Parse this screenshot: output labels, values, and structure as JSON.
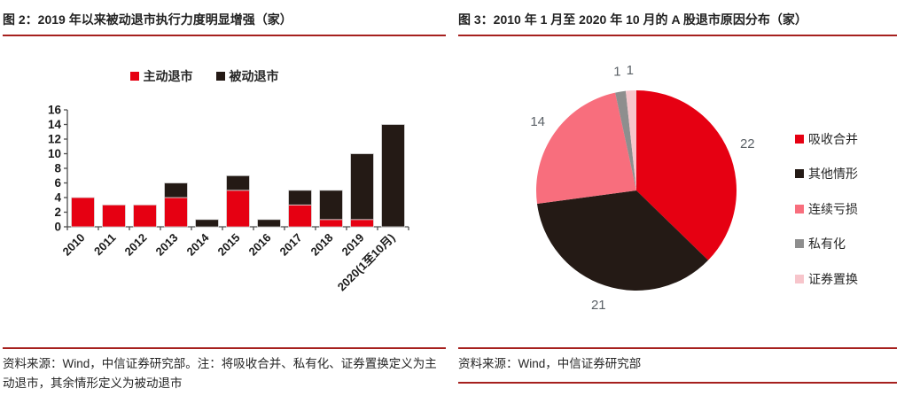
{
  "colors": {
    "rule_red": "#a6201e",
    "active_red": "#e60012",
    "passive_black": "#241a15",
    "pink": "#f86e7d",
    "gray": "#8e8e8e",
    "light_pink": "#f7c5cb",
    "pie_label_gray": "#5a6066"
  },
  "left_panel": {
    "title": "图 2：2019 年以来被动退市执行力度明显增强（家）",
    "source_note": "资料来源：Wind，中信证券研究部。注：将吸收合并、私有化、证券置换定义为主动退市，其余情形定义为被动退市"
  },
  "right_panel": {
    "title": "图 3：2010 年 1 月至 2020 年 10 月的 A 股退市原因分布（家）",
    "source_note": "资料来源：Wind，中信证券研究部"
  },
  "chart_data": [
    {
      "type": "bar",
      "stacked": true,
      "title": "2019 年以来被动退市执行力度明显增强（家）",
      "categories": [
        "2010",
        "2011",
        "2012",
        "2013",
        "2014",
        "2015",
        "2016",
        "2017",
        "2018",
        "2019",
        "2020(1至10月)"
      ],
      "series": [
        {
          "name": "主动退市",
          "color": "#e60012",
          "values": [
            4,
            3,
            3,
            4,
            0,
            5,
            0,
            3,
            1,
            1,
            0
          ]
        },
        {
          "name": "被动退市",
          "color": "#241a15",
          "values": [
            0,
            0,
            0,
            2,
            1,
            2,
            1,
            2,
            4,
            9,
            14
          ]
        }
      ],
      "totals": [
        4,
        3,
        3,
        6,
        1,
        7,
        1,
        5,
        5,
        10,
        14
      ],
      "xlabel": "",
      "ylabel": "",
      "ylim": [
        0,
        16
      ],
      "ytick_step": 2,
      "grid": false,
      "legend_position": "top"
    },
    {
      "type": "pie",
      "title": "2010 年 1 月至 2020 年 10 月的 A 股退市原因分布（家）",
      "labels": [
        "吸收合并",
        "其他情形",
        "连续亏损",
        "私有化",
        "证券置换"
      ],
      "values": [
        22,
        21,
        14,
        1,
        1
      ],
      "colors": [
        "#e60012",
        "#241a15",
        "#f86e7d",
        "#8e8e8e",
        "#f7c5cb"
      ],
      "start_angle_deg": 0,
      "direction": "clockwise",
      "legend_position": "right",
      "data_labels": "outside"
    }
  ]
}
